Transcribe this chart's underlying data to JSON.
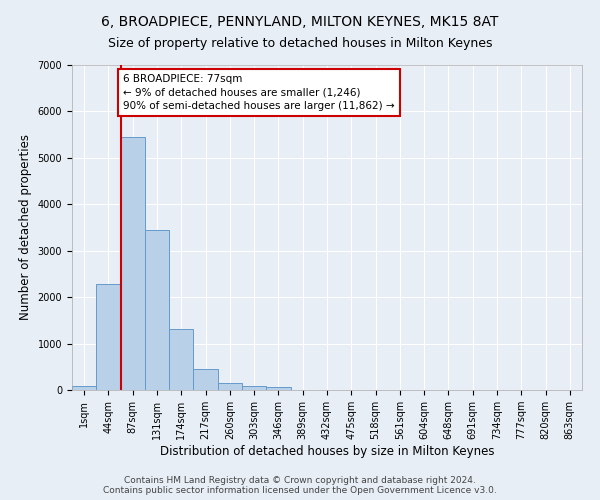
{
  "title": "6, BROADPIECE, PENNYLAND, MILTON KEYNES, MK15 8AT",
  "subtitle": "Size of property relative to detached houses in Milton Keynes",
  "xlabel": "Distribution of detached houses by size in Milton Keynes",
  "ylabel": "Number of detached properties",
  "footer_line1": "Contains HM Land Registry data © Crown copyright and database right 2024.",
  "footer_line2": "Contains public sector information licensed under the Open Government Licence v3.0.",
  "bar_labels": [
    "1sqm",
    "44sqm",
    "87sqm",
    "131sqm",
    "174sqm",
    "217sqm",
    "260sqm",
    "303sqm",
    "346sqm",
    "389sqm",
    "432sqm",
    "475sqm",
    "518sqm",
    "561sqm",
    "604sqm",
    "648sqm",
    "691sqm",
    "734sqm",
    "777sqm",
    "820sqm",
    "863sqm"
  ],
  "bar_values": [
    80,
    2280,
    5460,
    3450,
    1310,
    460,
    160,
    90,
    65,
    0,
    0,
    0,
    0,
    0,
    0,
    0,
    0,
    0,
    0,
    0,
    0
  ],
  "bar_color": "#b8d0e8",
  "bar_edgecolor": "#6699cc",
  "ylim": [
    0,
    7000
  ],
  "yticks": [
    0,
    1000,
    2000,
    3000,
    4000,
    5000,
    6000,
    7000
  ],
  "property_line_x": 1.5,
  "annotation_text": "6 BROADPIECE: 77sqm\n← 9% of detached houses are smaller (1,246)\n90% of semi-detached houses are larger (11,862) →",
  "annotation_box_color": "#ffffff",
  "annotation_box_edgecolor": "#cc0000",
  "background_color": "#e8eef6",
  "plot_bg_color": "#e8eef6",
  "grid_color": "#ffffff",
  "vline_color": "#cc0000",
  "title_fontsize": 10,
  "subtitle_fontsize": 9,
  "xlabel_fontsize": 8.5,
  "ylabel_fontsize": 8.5,
  "tick_fontsize": 7,
  "footer_fontsize": 6.5,
  "annot_fontsize": 7.5
}
